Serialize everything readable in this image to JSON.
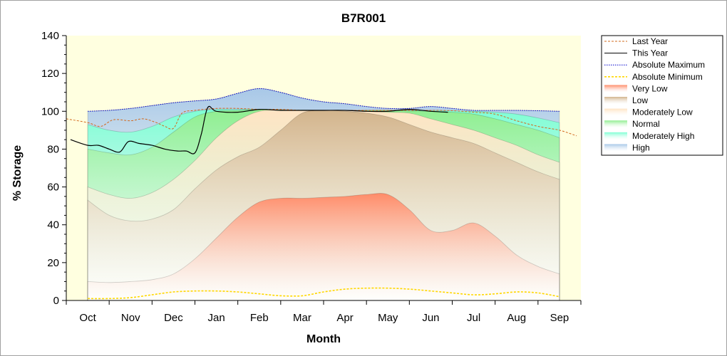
{
  "chart_data": {
    "type": "area",
    "title": "B7R001",
    "xlabel": "Month",
    "ylabel": "% Storage",
    "ylim": [
      0,
      140
    ],
    "yticks": [
      0,
      20,
      40,
      60,
      80,
      100,
      120,
      140
    ],
    "xlim": [
      -0.5,
      11.5
    ],
    "categories": [
      "Oct",
      "Nov",
      "Dec",
      "Jan",
      "Feb",
      "Mar",
      "Apr",
      "May",
      "Jun",
      "Jul",
      "Aug",
      "Sep"
    ],
    "legend_position": "right",
    "bands": [
      {
        "name": "Very Low",
        "color": "#ff8c69",
        "x": [
          0,
          0.5,
          1,
          1.5,
          2,
          2.5,
          3,
          3.5,
          4,
          4.5,
          5,
          5.5,
          6,
          6.5,
          7,
          7.5,
          8,
          8.5,
          9,
          9.5,
          10,
          10.5,
          11
        ],
        "upper": [
          10,
          9.5,
          10,
          11,
          14,
          22,
          33,
          44,
          52,
          54,
          54,
          54.5,
          55,
          56,
          56,
          48,
          37,
          37,
          41,
          34,
          24,
          18,
          14
        ]
      },
      {
        "name": "Low",
        "color": "#d2b48c",
        "x": [
          0,
          0.5,
          1,
          1.5,
          2,
          2.5,
          3,
          3.5,
          4,
          4.5,
          5,
          5.5,
          6,
          6.5,
          7,
          7.5,
          8,
          8.5,
          9,
          9.5,
          10,
          10.5,
          11
        ],
        "upper": [
          53,
          45,
          42,
          43,
          48,
          59,
          69,
          76,
          81,
          90,
          99,
          100.5,
          100,
          99,
          97,
          93,
          89,
          86,
          83,
          78,
          73,
          68,
          64
        ]
      },
      {
        "name": "Moderately Low",
        "color": "#ffe4c4",
        "x": [
          0,
          0.5,
          1,
          1.5,
          2,
          2.5,
          3,
          3.5,
          4,
          4.5,
          5,
          5.5,
          6,
          6.5,
          7,
          7.5,
          8,
          8.5,
          9,
          9.5,
          10,
          10.5,
          11
        ],
        "upper": [
          60,
          56,
          54,
          57,
          64,
          74,
          86,
          95,
          100,
          100.5,
          100.5,
          100.5,
          100.5,
          100,
          99.5,
          99,
          96,
          93,
          90,
          86,
          82,
          77,
          73
        ]
      },
      {
        "name": "Normal",
        "color": "#90ee90",
        "x": [
          0,
          0.5,
          1,
          1.5,
          2,
          2.5,
          3,
          3.5,
          4,
          4.5,
          5,
          5.5,
          6,
          6.5,
          7,
          7.5,
          8,
          8.5,
          9,
          9.5,
          10,
          10.5,
          11
        ],
        "upper": [
          80,
          78,
          77,
          81,
          89,
          97,
          100,
          100.5,
          101,
          100.8,
          100.5,
          100.5,
          100.5,
          100.5,
          100.5,
          100.2,
          100,
          99.5,
          98.5,
          96,
          93,
          90,
          86
        ]
      },
      {
        "name": "Moderately High",
        "color": "#7fffd4",
        "x": [
          0,
          0.5,
          1,
          1.5,
          2,
          2.5,
          3,
          3.5,
          4,
          4.5,
          5,
          5.5,
          6,
          6.5,
          7,
          7.5,
          8,
          8.5,
          9,
          9.5,
          10,
          10.5,
          11
        ],
        "upper": [
          93,
          90,
          89,
          92,
          97,
          100,
          101,
          101,
          101,
          100.8,
          100.7,
          100.6,
          100.5,
          100.5,
          100.5,
          100.5,
          100.5,
          100.3,
          100,
          99.5,
          98.5,
          96.5,
          94
        ]
      },
      {
        "name": "High",
        "color": "#a8c8e8",
        "x": [
          0,
          0.5,
          1,
          1.5,
          2,
          2.5,
          3,
          3.5,
          4,
          4.5,
          5,
          5.5,
          6,
          6.5,
          7,
          7.5,
          8,
          8.5,
          9,
          9.5,
          10,
          10.5,
          11
        ],
        "upper": [
          100,
          100.5,
          101.5,
          103,
          104.5,
          105.5,
          106.5,
          109.5,
          112,
          110,
          107,
          105,
          104,
          102.5,
          101.5,
          101.5,
          102.5,
          101.5,
          100.5,
          100.5,
          100.5,
          100.3,
          100
        ]
      }
    ],
    "series": [
      {
        "name": "Last Year",
        "color": "#d2691e",
        "style": "dashed",
        "x": [
          -0.5,
          0,
          0.3,
          0.6,
          1,
          1.3,
          1.6,
          1.8,
          2,
          2.2,
          2.5,
          3,
          3.5,
          4,
          4.5,
          5,
          5.5,
          6,
          6.5,
          7,
          7.5,
          8,
          8.5,
          9,
          9.5,
          10,
          10.5,
          11,
          11.4
        ],
        "y": [
          96,
          94,
          92,
          95.5,
          95,
          96,
          94,
          92,
          91,
          99,
          100.5,
          101.5,
          101.5,
          101,
          101,
          100.5,
          100.5,
          100.5,
          100.5,
          100.5,
          100.5,
          100.5,
          100.3,
          99.5,
          98.5,
          95,
          92,
          90,
          87
        ]
      },
      {
        "name": "This Year",
        "color": "#000000",
        "style": "solid",
        "x": [
          -0.4,
          0,
          0.25,
          0.5,
          0.75,
          0.95,
          1.2,
          1.5,
          1.8,
          2.1,
          2.3,
          2.5,
          2.65,
          2.8,
          3,
          3.5,
          4,
          4.5,
          5,
          5.5,
          6,
          6.5,
          7,
          7.5,
          8,
          8.4
        ],
        "y": [
          85,
          82,
          82,
          80,
          78.5,
          84,
          83,
          82,
          80,
          79,
          79,
          78,
          88,
          102,
          100,
          99.5,
          101,
          100.5,
          100.5,
          100.5,
          100.5,
          100,
          100,
          101,
          100,
          99.5
        ]
      },
      {
        "name": "Absolute Maximum",
        "color": "#0000cd",
        "style": "dotted",
        "x": [
          0,
          0.5,
          1,
          1.5,
          2,
          2.5,
          3,
          3.5,
          4,
          4.5,
          5,
          5.5,
          6,
          6.5,
          7,
          7.5,
          8,
          8.5,
          9,
          9.5,
          10,
          10.5,
          11
        ],
        "y": [
          100,
          100.5,
          101.5,
          103,
          104.5,
          105.5,
          106.5,
          109.5,
          112,
          110,
          107,
          105,
          104,
          102.5,
          101.5,
          101.5,
          102.5,
          101.5,
          100.5,
          100.5,
          100.5,
          100.3,
          100
        ]
      },
      {
        "name": "Absolute Minimum",
        "color": "#ffd700",
        "style": "dashed",
        "x": [
          0,
          0.5,
          1,
          1.5,
          2,
          2.5,
          3,
          3.5,
          4,
          4.5,
          5,
          5.5,
          6,
          6.5,
          7,
          7.5,
          8,
          8.5,
          9,
          9.5,
          10,
          10.5,
          11
        ],
        "y": [
          1,
          1,
          1.5,
          3,
          4.5,
          5,
          5,
          4.5,
          3.5,
          2.5,
          2.5,
          4.5,
          6,
          6.5,
          6.5,
          6,
          5,
          4,
          3,
          3.5,
          4.5,
          4,
          2
        ]
      }
    ],
    "legend": [
      "Last Year",
      "This Year",
      "Absolute Maximum",
      "Absolute Minimum",
      "Very Low",
      "Low",
      "Moderately Low",
      "Normal",
      "Moderately High",
      "High"
    ]
  }
}
